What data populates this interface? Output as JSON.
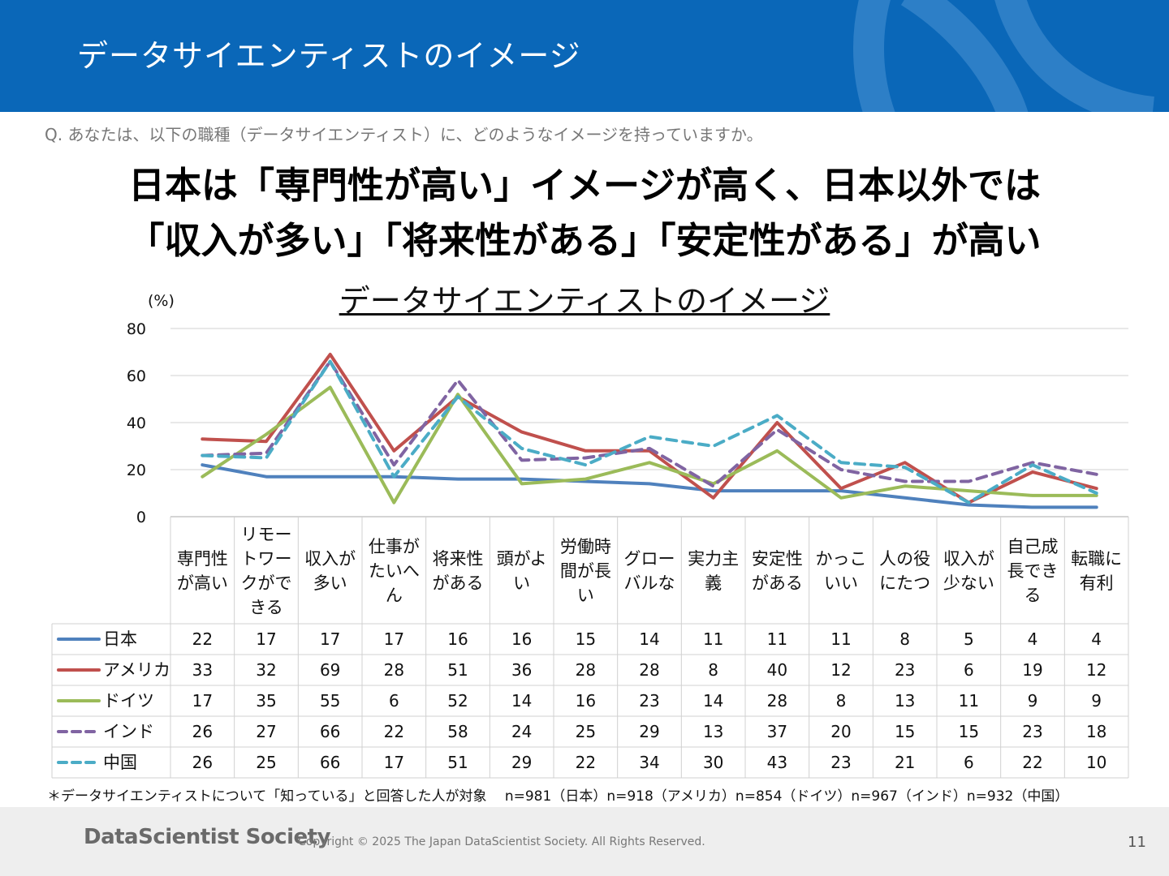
{
  "header": {
    "title": "データサイエンティストのイメージ"
  },
  "question": "Q. あなたは、以下の職種（データサイエンティスト）に、どのようなイメージを持っていますか。",
  "headline": {
    "line1": "日本は「専門性が高い」イメージが高く、日本以外では",
    "line2": "「収入が多い」「将来性がある」「安定性がある」が高い"
  },
  "chart_data": {
    "type": "line",
    "title": "データサイエンティストのイメージ",
    "ylabel": "(%)",
    "xlabel": "",
    "ylim": [
      0,
      80
    ],
    "yticks": [
      "0",
      "20",
      "40",
      "60",
      "80"
    ],
    "grid": true,
    "categories": [
      [
        "専門性",
        "が高い"
      ],
      [
        "リモー",
        "トワー",
        "クがで",
        "きる"
      ],
      [
        "収入が",
        "多い"
      ],
      [
        "仕事が",
        "たいへ",
        "ん"
      ],
      [
        "将来性",
        "がある"
      ],
      [
        "頭がよ",
        "い"
      ],
      [
        "労働時",
        "間が長",
        "い"
      ],
      [
        "グロー",
        "バルな"
      ],
      [
        "実力主",
        "義"
      ],
      [
        "安定性",
        "がある"
      ],
      [
        "かっこ",
        "いい"
      ],
      [
        "人の役",
        "にたつ"
      ],
      [
        "収入が",
        "少ない"
      ],
      [
        "自己成",
        "長でき",
        "る"
      ],
      [
        "転職に",
        "有利"
      ]
    ],
    "series": [
      {
        "name": "日本",
        "color": "#4f81bd",
        "dashed": false,
        "values": [
          22,
          17,
          17,
          17,
          16,
          16,
          15,
          14,
          11,
          11,
          11,
          8,
          5,
          4,
          4
        ]
      },
      {
        "name": "アメリカ",
        "color": "#c0504d",
        "dashed": false,
        "values": [
          33,
          32,
          69,
          28,
          51,
          36,
          28,
          28,
          8,
          40,
          12,
          23,
          6,
          19,
          12
        ]
      },
      {
        "name": "ドイツ",
        "color": "#9bbb59",
        "dashed": false,
        "values": [
          17,
          35,
          55,
          6,
          52,
          14,
          16,
          23,
          14,
          28,
          8,
          13,
          11,
          9,
          9
        ]
      },
      {
        "name": "インド",
        "color": "#8064a2",
        "dashed": true,
        "values": [
          26,
          27,
          66,
          22,
          58,
          24,
          25,
          29,
          13,
          37,
          20,
          15,
          15,
          23,
          18
        ]
      },
      {
        "name": "中国",
        "color": "#4bacc6",
        "dashed": true,
        "values": [
          26,
          25,
          66,
          17,
          51,
          29,
          22,
          34,
          30,
          43,
          23,
          21,
          6,
          22,
          10
        ]
      }
    ]
  },
  "footnote": "＊データサイエンティストについて「知っている」と回答した人が対象　 n=981（日本）n=918（アメリカ）n=854（ドイツ）n=967（インド）n=932（中国）",
  "footer": {
    "logo": "DataScientist Society",
    "copyright": "Copyright © 2025 The Japan DataScientist Society. All Rights Reserved.",
    "page": "11"
  }
}
